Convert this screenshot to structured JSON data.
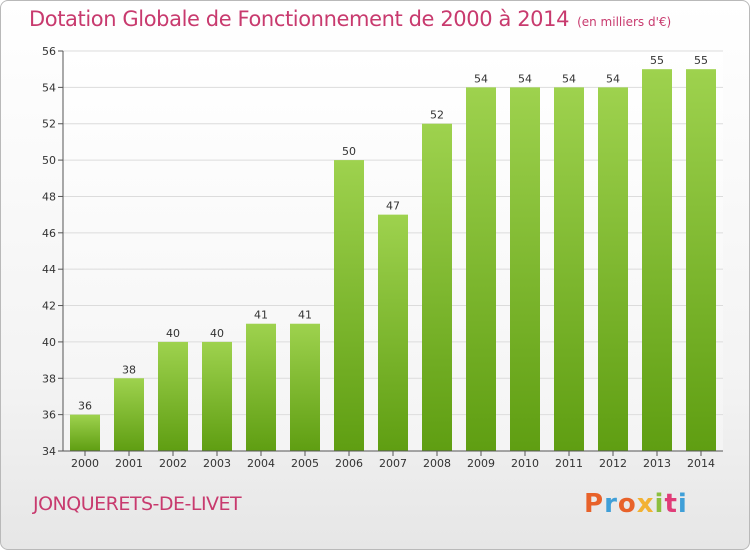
{
  "header": {
    "title": "Dotation Globale de Fonctionnement de 2000 à 2014",
    "subtitle": "(en milliers d'€)"
  },
  "footer": {
    "commune": "JONQUERETS-DE-LIVET",
    "logo": "Proxiti",
    "logo_colors": [
      "#e8622a",
      "#3f9fd8",
      "#e8622a",
      "#f2b233",
      "#8cbf3f",
      "#e03c78",
      "#3f9fd8"
    ]
  },
  "colors": {
    "title": "#c83a6e",
    "bar_top": "#9ed24e",
    "bar_bottom": "#5f9e12",
    "grid": "#dcdcdc"
  },
  "chart_data": {
    "type": "bar",
    "categories": [
      "2000",
      "2001",
      "2002",
      "2003",
      "2004",
      "2005",
      "2006",
      "2007",
      "2008",
      "2009",
      "2010",
      "2011",
      "2012",
      "2013",
      "2014"
    ],
    "values": [
      36,
      38,
      40,
      40,
      41,
      41,
      50,
      47,
      52,
      54,
      54,
      54,
      54,
      55,
      55
    ],
    "ylim": [
      34,
      56
    ],
    "yticks": [
      34,
      36,
      38,
      40,
      42,
      44,
      46,
      48,
      50,
      52,
      54,
      56
    ],
    "grid": true,
    "data_labels": true
  }
}
